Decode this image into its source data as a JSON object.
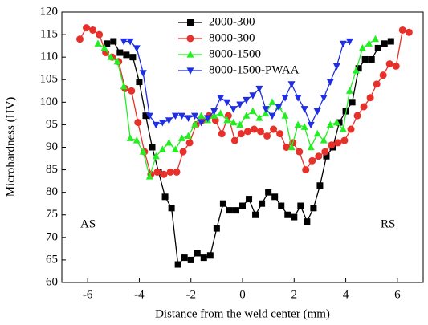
{
  "chart_data": {
    "type": "line",
    "xlabel": "Distance from the weld center (mm)",
    "ylabel": "Microhardness (HV)",
    "xlim": [
      -7,
      7
    ],
    "xticks": [
      -6,
      -4,
      -2,
      0,
      2,
      4,
      6
    ],
    "ylim": [
      60,
      120
    ],
    "yticks": [
      60,
      65,
      70,
      75,
      80,
      85,
      90,
      95,
      100,
      105,
      110,
      115,
      120
    ],
    "legend": "top",
    "annotations": [
      "AS",
      "RS"
    ],
    "series": [
      {
        "name": "2000-300",
        "color": "#000000",
        "marker": "square",
        "x": [
          -5.25,
          -5.0,
          -4.75,
          -4.5,
          -4.25,
          -4.0,
          -3.75,
          -3.5,
          -3.25,
          -3.0,
          -2.75,
          -2.5,
          -2.25,
          -2.0,
          -1.75,
          -1.5,
          -1.25,
          -1.0,
          -0.75,
          -0.5,
          -0.25,
          0.0,
          0.25,
          0.5,
          0.75,
          1.0,
          1.25,
          1.5,
          1.75,
          2.0,
          2.25,
          2.5,
          2.75,
          3.0,
          3.25,
          3.5,
          3.75,
          4.0,
          4.25,
          4.5,
          4.75,
          5.0,
          5.25,
          5.5,
          5.75
        ],
        "values": [
          113,
          113.5,
          111,
          110.5,
          110,
          104.5,
          97,
          90,
          84.5,
          79,
          76.5,
          64,
          65.5,
          65,
          66.5,
          65.5,
          66,
          72,
          77.5,
          76,
          76,
          77,
          78.5,
          75,
          77.5,
          80,
          79,
          77,
          75,
          74.5,
          77,
          73.5,
          76.5,
          81.5,
          88,
          90,
          95.5,
          98,
          100,
          107.5,
          109.5,
          109.5,
          112,
          113,
          113.5
        ]
      },
      {
        "name": "8000-300",
        "color": "#e8302a",
        "marker": "circle",
        "x": [
          -6.3,
          -6.05,
          -5.8,
          -5.55,
          -5.3,
          -5.05,
          -4.8,
          -4.55,
          -4.3,
          -4.05,
          -3.8,
          -3.55,
          -3.3,
          -3.05,
          -2.8,
          -2.55,
          -2.3,
          -2.05,
          -1.8,
          -1.55,
          -1.3,
          -1.05,
          -0.8,
          -0.55,
          -0.3,
          -0.05,
          0.2,
          0.45,
          0.7,
          0.95,
          1.2,
          1.45,
          1.7,
          1.95,
          2.2,
          2.45,
          2.7,
          2.95,
          3.2,
          3.45,
          3.7,
          3.95,
          4.2,
          4.45,
          4.7,
          4.95,
          5.2,
          5.45,
          5.7,
          5.95,
          6.2,
          6.45
        ],
        "values": [
          114,
          116.5,
          116,
          115,
          111,
          110,
          109,
          103,
          102.5,
          95.5,
          89,
          84,
          84.5,
          84,
          84.5,
          84.5,
          89,
          91,
          95,
          96,
          97,
          96,
          93,
          97,
          91.5,
          93,
          93.5,
          94,
          93.5,
          92.5,
          94,
          93,
          90,
          91,
          89,
          85,
          87,
          88,
          89,
          90.5,
          91,
          91.5,
          94,
          97,
          99,
          101,
          104,
          106,
          108.5,
          108,
          116,
          115.5
        ]
      },
      {
        "name": "8000-1500",
        "color": "#22ee22",
        "marker": "triangle-up",
        "x": [
          -5.6,
          -5.35,
          -5.1,
          -4.85,
          -4.6,
          -4.35,
          -4.1,
          -3.85,
          -3.6,
          -3.35,
          -3.1,
          -2.85,
          -2.6,
          -2.35,
          -2.1,
          -1.85,
          -1.6,
          -1.35,
          -1.1,
          -0.85,
          -0.6,
          -0.35,
          -0.1,
          0.15,
          0.4,
          0.65,
          0.9,
          1.15,
          1.4,
          1.65,
          1.9,
          2.15,
          2.4,
          2.65,
          2.9,
          3.15,
          3.4,
          3.65,
          3.9,
          4.15,
          4.4,
          4.65,
          4.9,
          5.15
        ],
        "values": [
          113,
          112,
          110,
          109,
          103.5,
          92,
          91.5,
          89,
          83.5,
          88,
          89.5,
          91,
          89.5,
          92,
          92.5,
          95,
          97,
          96,
          97,
          97.5,
          96,
          95.5,
          95,
          97,
          98,
          96.5,
          97.5,
          100,
          99,
          97,
          90,
          95,
          94.5,
          90,
          93,
          91.5,
          95,
          95.5,
          94,
          102.5,
          107,
          112,
          113,
          114
        ]
      },
      {
        "name": "8000-1500-PWAA",
        "color": "#1f2ee0",
        "marker": "triangle-down",
        "x": [
          -4.6,
          -4.35,
          -4.1,
          -3.85,
          -3.6,
          -3.35,
          -3.1,
          -2.85,
          -2.6,
          -2.35,
          -2.1,
          -1.85,
          -1.6,
          -1.35,
          -1.1,
          -0.85,
          -0.6,
          -0.35,
          -0.1,
          0.15,
          0.4,
          0.65,
          0.9,
          1.15,
          1.4,
          1.65,
          1.9,
          2.15,
          2.4,
          2.65,
          2.9,
          3.15,
          3.4,
          3.65,
          3.9,
          4.15
        ],
        "values": [
          113.5,
          113.5,
          112,
          106.5,
          97,
          95,
          95.5,
          96,
          97,
          97,
          96.5,
          97,
          95.5,
          96.5,
          98,
          101,
          100,
          98.5,
          99.5,
          100.5,
          101.5,
          103,
          98.5,
          97,
          99,
          101,
          104,
          101,
          98.5,
          95,
          98,
          101,
          104.5,
          108,
          113,
          113.5
        ]
      }
    ]
  }
}
